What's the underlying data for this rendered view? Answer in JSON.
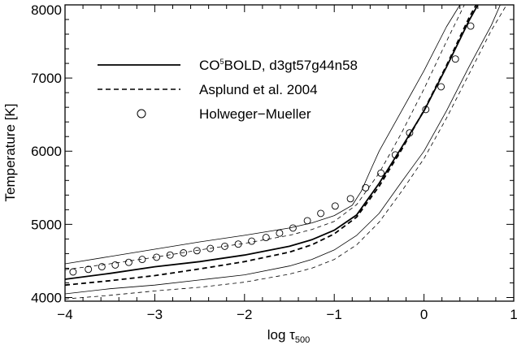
{
  "chart_data": {
    "type": "line",
    "xlabel_main": "log τ",
    "xlabel_sub": "500",
    "ylabel": "Temperature [K]",
    "xlim": [
      -4,
      1
    ],
    "ylim": [
      3950,
      8000
    ],
    "x_ticks": [
      -4,
      -3,
      -2,
      -1,
      0,
      1
    ],
    "x_tick_labels": [
      "−4",
      "−3",
      "−2",
      "−1",
      "0",
      "1"
    ],
    "y_ticks": [
      4000,
      5000,
      6000,
      7000,
      8000
    ],
    "y_tick_labels": [
      "4000",
      "5000",
      "6000",
      "7000",
      "8000"
    ],
    "legend": {
      "placement": "top-left",
      "entries": [
        {
          "label_main": "CO",
          "label_sup": "5",
          "label_rest": "BOLD, d3gt57g44n58",
          "style": "solid"
        },
        {
          "label_main": "Asplund et al. 2004",
          "style": "dashed"
        },
        {
          "label_main": "Holweger−Mueller",
          "style": "circle"
        }
      ]
    },
    "series": [
      {
        "name": "CO5BOLD, d3gt57g44n58",
        "style": "solid",
        "width": "thick",
        "points": [
          [
            -4.0,
            4250
          ],
          [
            -3.5,
            4330
          ],
          [
            -3.0,
            4420
          ],
          [
            -2.5,
            4490
          ],
          [
            -2.0,
            4580
          ],
          [
            -1.5,
            4700
          ],
          [
            -1.25,
            4790
          ],
          [
            -1.0,
            4920
          ],
          [
            -0.75,
            5130
          ],
          [
            -0.5,
            5560
          ],
          [
            -0.25,
            6050
          ],
          [
            0.0,
            6550
          ],
          [
            0.25,
            7150
          ],
          [
            0.5,
            7780
          ],
          [
            0.6,
            8000
          ]
        ]
      },
      {
        "name": "CO5BOLD upper",
        "style": "solid",
        "width": "thin",
        "points": [
          [
            -4.0,
            4460
          ],
          [
            -3.5,
            4560
          ],
          [
            -3.0,
            4660
          ],
          [
            -2.5,
            4760
          ],
          [
            -2.0,
            4850
          ],
          [
            -1.5,
            4950
          ],
          [
            -1.25,
            5020
          ],
          [
            -1.0,
            5120
          ],
          [
            -0.8,
            5260
          ],
          [
            -0.7,
            5450
          ],
          [
            -0.6,
            5730
          ],
          [
            -0.5,
            6000
          ],
          [
            -0.25,
            6550
          ],
          [
            0.0,
            7100
          ],
          [
            0.25,
            7700
          ],
          [
            0.4,
            8000
          ]
        ]
      },
      {
        "name": "CO5BOLD lower",
        "style": "solid",
        "width": "thin",
        "points": [
          [
            -4.0,
            4050
          ],
          [
            -3.5,
            4120
          ],
          [
            -3.0,
            4170
          ],
          [
            -2.5,
            4240
          ],
          [
            -2.0,
            4310
          ],
          [
            -1.5,
            4430
          ],
          [
            -1.25,
            4520
          ],
          [
            -1.0,
            4650
          ],
          [
            -0.75,
            4850
          ],
          [
            -0.5,
            5150
          ],
          [
            -0.25,
            5580
          ],
          [
            0.0,
            6000
          ],
          [
            0.25,
            6550
          ],
          [
            0.5,
            7150
          ],
          [
            0.75,
            7720
          ],
          [
            0.85,
            8000
          ]
        ]
      },
      {
        "name": "Asplund et al. 2004",
        "style": "dashed",
        "width": "thick",
        "points": [
          [
            -4.0,
            4170
          ],
          [
            -3.5,
            4230
          ],
          [
            -3.0,
            4300
          ],
          [
            -2.5,
            4390
          ],
          [
            -2.0,
            4490
          ],
          [
            -1.5,
            4620
          ],
          [
            -1.25,
            4720
          ],
          [
            -1.0,
            4870
          ],
          [
            -0.75,
            5100
          ],
          [
            -0.5,
            5520
          ],
          [
            -0.25,
            6020
          ],
          [
            0.0,
            6560
          ],
          [
            0.25,
            7170
          ],
          [
            0.5,
            7820
          ],
          [
            0.58,
            8000
          ]
        ]
      },
      {
        "name": "Asplund upper",
        "style": "dashed",
        "width": "thin",
        "points": [
          [
            -4.0,
            4380
          ],
          [
            -3.5,
            4460
          ],
          [
            -3.0,
            4550
          ],
          [
            -2.5,
            4650
          ],
          [
            -2.0,
            4740
          ],
          [
            -1.5,
            4850
          ],
          [
            -1.25,
            4930
          ],
          [
            -1.0,
            5040
          ],
          [
            -0.75,
            5270
          ],
          [
            -0.5,
            5700
          ],
          [
            -0.25,
            6250
          ],
          [
            0.0,
            6850
          ],
          [
            0.25,
            7500
          ],
          [
            0.45,
            8000
          ]
        ]
      },
      {
        "name": "Asplund lower",
        "style": "dashed",
        "width": "thin",
        "points": [
          [
            -4.0,
            3980
          ],
          [
            -3.5,
            4030
          ],
          [
            -3.0,
            4090
          ],
          [
            -2.5,
            4140
          ],
          [
            -2.0,
            4210
          ],
          [
            -1.5,
            4320
          ],
          [
            -1.25,
            4400
          ],
          [
            -1.0,
            4520
          ],
          [
            -0.75,
            4720
          ],
          [
            -0.5,
            5030
          ],
          [
            -0.25,
            5450
          ],
          [
            0.0,
            5900
          ],
          [
            0.25,
            6450
          ],
          [
            0.5,
            7050
          ],
          [
            0.75,
            7650
          ],
          [
            0.92,
            8000
          ]
        ]
      }
    ],
    "points_series": {
      "name": "Holweger−Mueller",
      "marker": "circle",
      "x": [
        -3.91,
        -3.74,
        -3.59,
        -3.44,
        -3.29,
        -3.14,
        -2.98,
        -2.83,
        -2.68,
        -2.53,
        -2.38,
        -2.22,
        -2.07,
        -1.92,
        -1.76,
        -1.61,
        -1.46,
        -1.3,
        -1.15,
        -0.99,
        -0.82,
        -0.65,
        -0.48,
        -0.32,
        -0.16,
        0.02,
        0.19,
        0.35,
        0.52
      ],
      "y": [
        4350,
        4385,
        4420,
        4445,
        4480,
        4520,
        4550,
        4580,
        4610,
        4640,
        4670,
        4700,
        4730,
        4770,
        4820,
        4880,
        4950,
        5050,
        5150,
        5250,
        5350,
        5500,
        5700,
        5950,
        6250,
        6570,
        6880,
        7260,
        7710
      ]
    }
  }
}
